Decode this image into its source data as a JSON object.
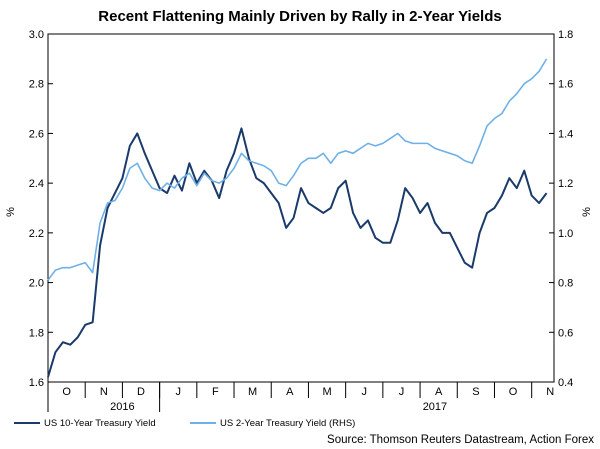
{
  "chart_data": {
    "type": "line",
    "title": "Recent Flattening Mainly Driven by Rally in 2-Year Yields",
    "ylabel_left": "%",
    "ylabel_right": "%",
    "ylim_left": [
      1.6,
      3.0
    ],
    "ylim_right": [
      0.4,
      1.8
    ],
    "yticks_left": [
      "1.6",
      "1.8",
      "2.0",
      "2.2",
      "2.4",
      "2.6",
      "2.8",
      "3.0"
    ],
    "yticks_right": [
      "0.4",
      "0.6",
      "0.8",
      "1.0",
      "1.2",
      "1.4",
      "1.6",
      "1.8"
    ],
    "x_months": [
      "O",
      "N",
      "D",
      "J",
      "F",
      "M",
      "A",
      "M",
      "J",
      "J",
      "A",
      "S",
      "O",
      "N"
    ],
    "x_years": [
      "2016",
      "2017"
    ],
    "colors": {
      "ten_year": "#1a3a6b",
      "two_year": "#6fb1e6"
    },
    "series": [
      {
        "name": "US 10-Year Treasury Yield",
        "axis": "left",
        "x": [
          0,
          0.2,
          0.4,
          0.6,
          0.8,
          1,
          1.2,
          1.4,
          1.6,
          1.8,
          2,
          2.2,
          2.4,
          2.6,
          2.8,
          3,
          3.2,
          3.4,
          3.6,
          3.8,
          4,
          4.2,
          4.4,
          4.6,
          4.8,
          5,
          5.2,
          5.4,
          5.6,
          5.8,
          6,
          6.2,
          6.4,
          6.6,
          6.8,
          7,
          7.2,
          7.4,
          7.6,
          7.8,
          8,
          8.2,
          8.4,
          8.6,
          8.8,
          9,
          9.2,
          9.4,
          9.6,
          9.8,
          10,
          10.2,
          10.4,
          10.6,
          10.8,
          11,
          11.2,
          11.4,
          11.6,
          11.8,
          12,
          12.2,
          12.4,
          12.6,
          12.8,
          13,
          13.2,
          13.4
        ],
        "values": [
          1.62,
          1.72,
          1.76,
          1.75,
          1.78,
          1.83,
          1.84,
          2.15,
          2.3,
          2.36,
          2.42,
          2.55,
          2.6,
          2.52,
          2.45,
          2.38,
          2.36,
          2.43,
          2.37,
          2.48,
          2.4,
          2.45,
          2.41,
          2.34,
          2.45,
          2.52,
          2.62,
          2.5,
          2.42,
          2.4,
          2.36,
          2.32,
          2.22,
          2.26,
          2.38,
          2.32,
          2.3,
          2.28,
          2.3,
          2.38,
          2.41,
          2.28,
          2.22,
          2.25,
          2.18,
          2.16,
          2.16,
          2.25,
          2.38,
          2.34,
          2.28,
          2.32,
          2.24,
          2.2,
          2.2,
          2.14,
          2.08,
          2.06,
          2.2,
          2.28,
          2.3,
          2.35,
          2.42,
          2.38,
          2.45,
          2.35,
          2.32,
          2.36
        ]
      },
      {
        "name": "US 2-Year Treasury Yield (RHS)",
        "axis": "right",
        "x": [
          0,
          0.2,
          0.4,
          0.6,
          0.8,
          1,
          1.2,
          1.4,
          1.6,
          1.8,
          2,
          2.2,
          2.4,
          2.6,
          2.8,
          3,
          3.2,
          3.4,
          3.6,
          3.8,
          4,
          4.2,
          4.4,
          4.6,
          4.8,
          5,
          5.2,
          5.4,
          5.6,
          5.8,
          6,
          6.2,
          6.4,
          6.6,
          6.8,
          7,
          7.2,
          7.4,
          7.6,
          7.8,
          8,
          8.2,
          8.4,
          8.6,
          8.8,
          9,
          9.2,
          9.4,
          9.6,
          9.8,
          10,
          10.2,
          10.4,
          10.6,
          10.8,
          11,
          11.2,
          11.4,
          11.6,
          11.8,
          12,
          12.2,
          12.4,
          12.6,
          12.8,
          13,
          13.2,
          13.4
        ],
        "values": [
          0.81,
          0.85,
          0.86,
          0.86,
          0.87,
          0.88,
          0.84,
          1.04,
          1.12,
          1.13,
          1.18,
          1.26,
          1.28,
          1.22,
          1.18,
          1.17,
          1.2,
          1.18,
          1.22,
          1.24,
          1.19,
          1.24,
          1.21,
          1.2,
          1.22,
          1.26,
          1.32,
          1.29,
          1.28,
          1.27,
          1.25,
          1.2,
          1.19,
          1.23,
          1.28,
          1.3,
          1.3,
          1.32,
          1.28,
          1.32,
          1.33,
          1.32,
          1.34,
          1.36,
          1.35,
          1.36,
          1.38,
          1.4,
          1.37,
          1.36,
          1.36,
          1.36,
          1.34,
          1.33,
          1.32,
          1.31,
          1.29,
          1.28,
          1.35,
          1.43,
          1.46,
          1.48,
          1.53,
          1.56,
          1.6,
          1.62,
          1.65,
          1.7
        ]
      }
    ],
    "legend": [
      "US 10-Year Treasury Yield",
      "US 2-Year Treasury Yield (RHS)"
    ],
    "source": "Source: Thomson Reuters Datastream, Action Forex"
  }
}
